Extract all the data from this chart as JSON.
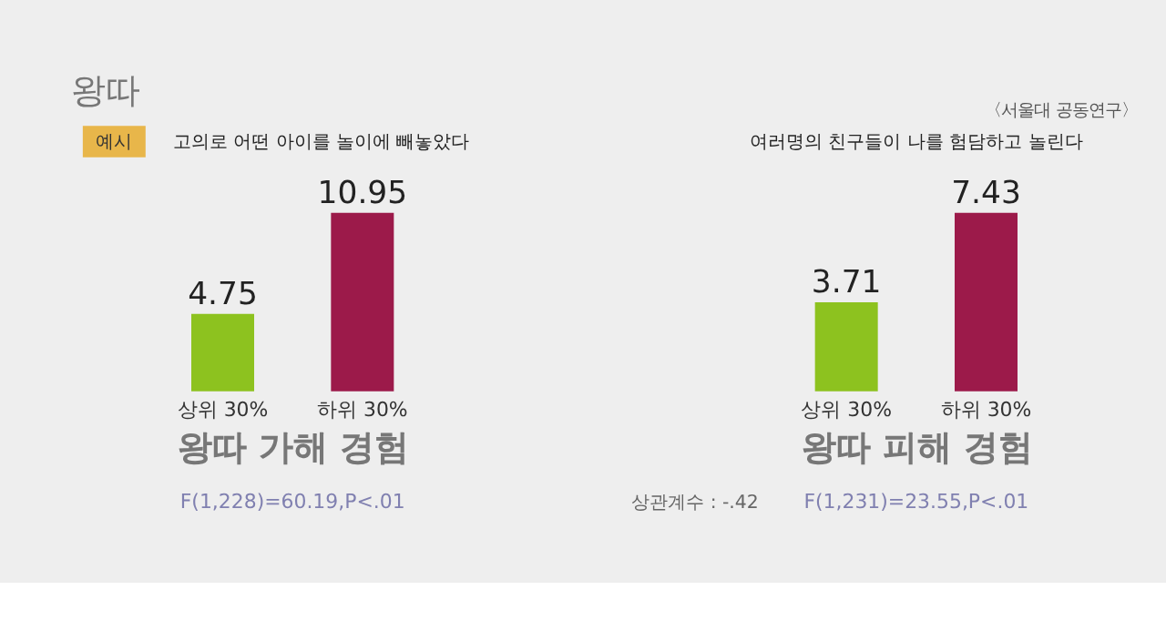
{
  "chart_data": [
    {
      "type": "bar",
      "title": "고의로 어떤 아이를 놀이에 빼놓았다",
      "categories": [
        "상위 30%",
        "하위 30%"
      ],
      "values": [
        4.75,
        10.95
      ],
      "colors": [
        "#8dc21f",
        "#9c1a4a"
      ],
      "data_labels": true,
      "xlabel": "왕따 가해 경험",
      "annotations": [
        "왕따",
        "예시",
        "F(1,228)=60.19,P<.01"
      ]
    },
    {
      "type": "bar",
      "title": "여러명의 친구들이 나를 험담하고 놀린다",
      "categories": [
        "상위 30%",
        "하위 30%"
      ],
      "values": [
        3.71,
        7.43
      ],
      "colors": [
        "#8dc21f",
        "#9c1a4a"
      ],
      "data_labels": true,
      "xlabel": "왕따 피해 경험",
      "annotations": [
        "〈서울대 공동연구〉",
        "F(1,231)=23.55,P<.01",
        "상관계수 : -.42"
      ]
    }
  ]
}
